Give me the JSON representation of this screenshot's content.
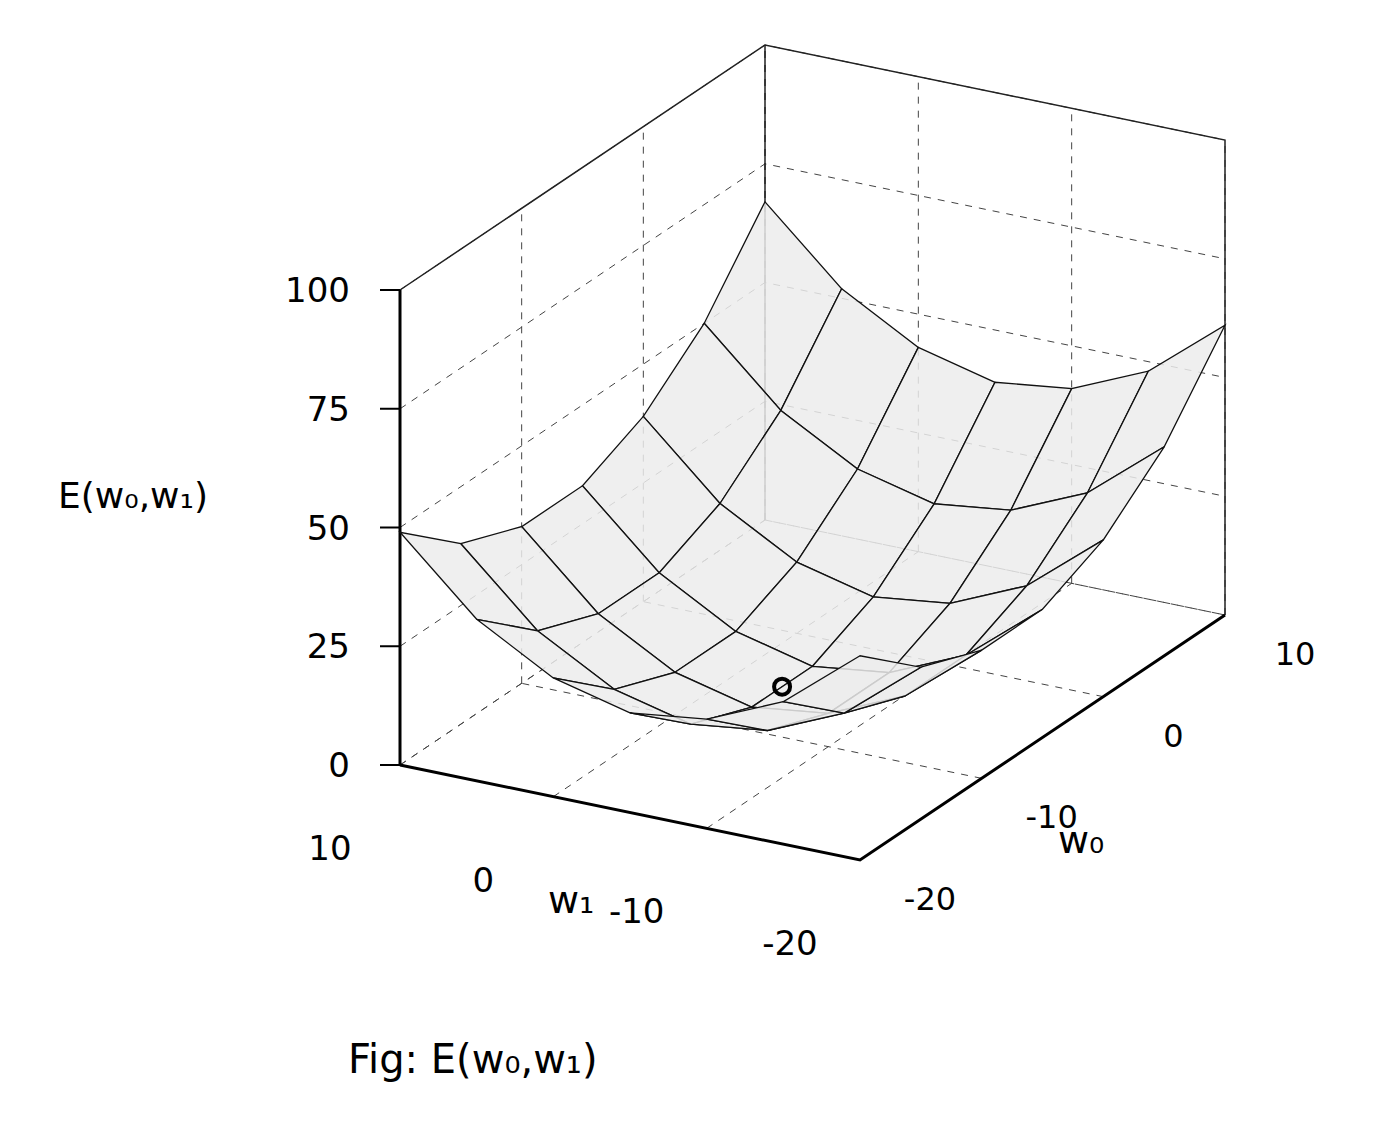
{
  "chart_data": {
    "type": "surface",
    "title": "Fig: E(w₀,w₁)",
    "xlabel": "w₁",
    "ylabel": "w₀",
    "zlabel": "E(w₀,w₁)",
    "x": [
      -20,
      -15,
      -10,
      -5,
      0,
      5,
      10
    ],
    "y": [
      -20,
      -15,
      -10,
      -5,
      0,
      5,
      10
    ],
    "z": [
      [
        43,
        30,
        23,
        21,
        25,
        34,
        49
      ],
      [
        32,
        19,
        12,
        10,
        14,
        23,
        38
      ],
      [
        27,
        14,
        7,
        5,
        9,
        18,
        33
      ],
      [
        27,
        14,
        7,
        5,
        9,
        18,
        33
      ],
      [
        33,
        20,
        13,
        11,
        15,
        24,
        39
      ],
      [
        44,
        31,
        24,
        22,
        26,
        35,
        50
      ],
      [
        61,
        48,
        41,
        39,
        43,
        52,
        67
      ]
    ],
    "xlim": [
      -20,
      10
    ],
    "ylim": [
      -20,
      10
    ],
    "zlim": [
      0,
      100
    ],
    "xticks": [
      -20,
      -10,
      0,
      10
    ],
    "yticks": [
      -20,
      -10,
      0,
      10
    ],
    "zticks": [
      0,
      25,
      50,
      75,
      100
    ],
    "grid": true,
    "minimum": {
      "x": -5,
      "y": -7.5,
      "value": 5
    }
  }
}
